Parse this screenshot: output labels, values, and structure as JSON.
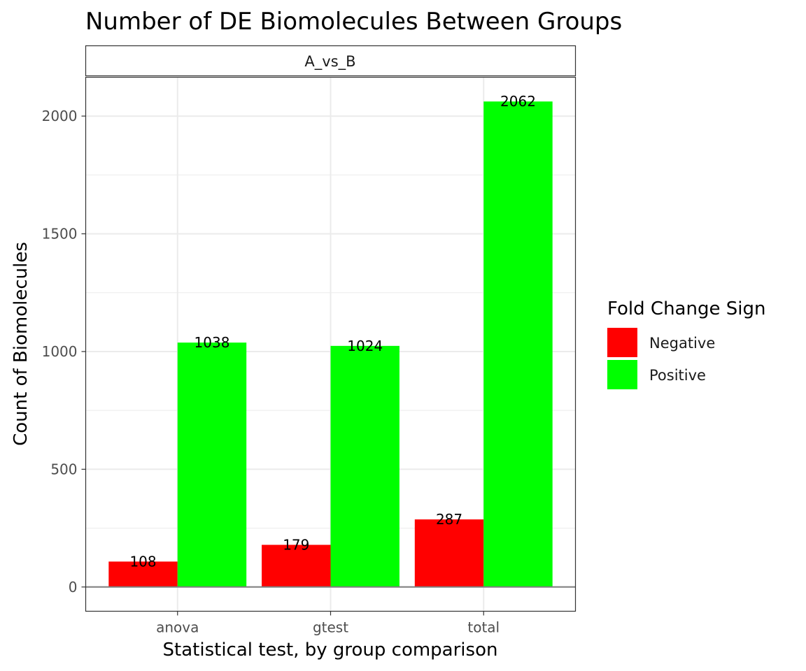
{
  "chart_data": {
    "type": "bar",
    "title": "Number of DE Biomolecules Between Groups",
    "facet": "A_vs_B",
    "xlabel": "Statistical test, by group comparison",
    "ylabel": "Count of Biomolecules",
    "categories": [
      "anova",
      "gtest",
      "total"
    ],
    "series": [
      {
        "name": "Negative",
        "color": "#ff0000",
        "values": [
          108,
          179,
          287
        ]
      },
      {
        "name": "Positive",
        "color": "#00ff00",
        "values": [
          1038,
          1024,
          2062
        ]
      }
    ],
    "yticks": [
      0,
      500,
      1000,
      1500,
      2000
    ],
    "ylim": [
      -103,
      2165
    ],
    "grid": true,
    "legend": {
      "title": "Fold Change Sign",
      "position": "right"
    }
  }
}
